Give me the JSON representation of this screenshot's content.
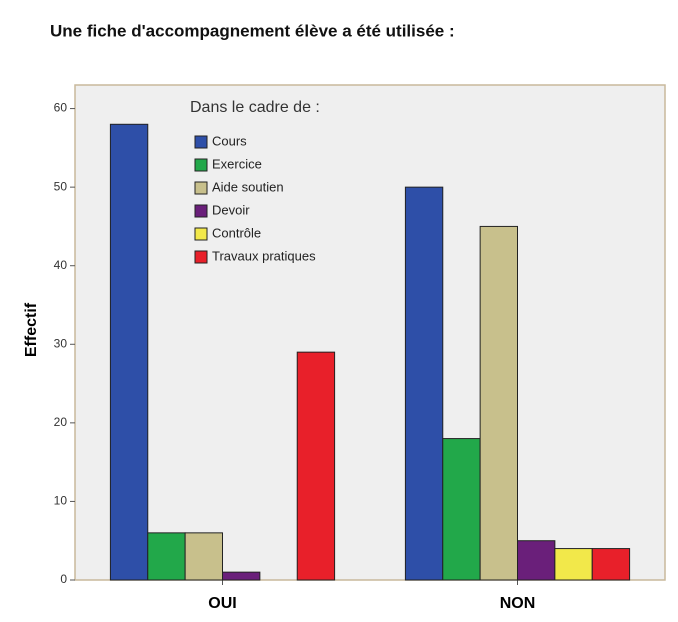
{
  "chart_data": {
    "type": "bar",
    "title": "Une fiche d'accompagnement élève a été utilisée :",
    "y_label": "Effectif",
    "legend_title": "Dans le cadre de :",
    "categories": [
      "OUI",
      "NON"
    ],
    "series": [
      {
        "name": "Cours",
        "color": "#2e4fa8",
        "values": [
          58,
          50
        ]
      },
      {
        "name": "Exercice",
        "color": "#22a84a",
        "values": [
          6,
          18
        ]
      },
      {
        "name": "Aide soutien",
        "color": "#c8c08c",
        "values": [
          6,
          45
        ]
      },
      {
        "name": "Devoir",
        "color": "#6a1f7a",
        "values": [
          1,
          5
        ]
      },
      {
        "name": "Contrôle",
        "color": "#f2e84a",
        "values": [
          0,
          4
        ]
      },
      {
        "name": "Travaux pratiques",
        "color": "#e8202a",
        "values": [
          29,
          4
        ]
      }
    ],
    "ylim": [
      0,
      63
    ],
    "yticks": [
      0,
      10,
      20,
      30,
      40,
      50,
      60
    ],
    "legend": "upper-left"
  }
}
